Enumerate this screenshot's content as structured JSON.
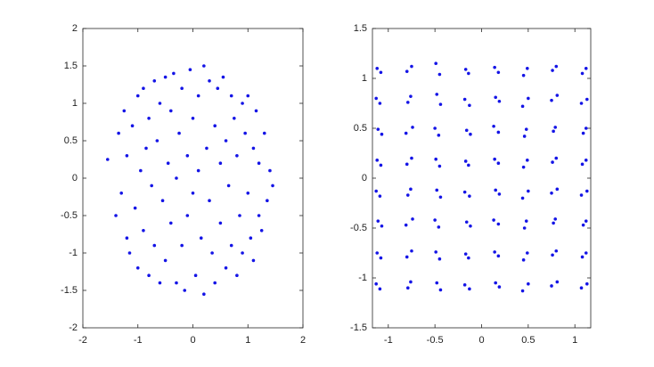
{
  "chart_data": [
    {
      "type": "scatter",
      "color": "#1414e6",
      "xlim": [
        -2,
        2
      ],
      "ylim": [
        -2,
        2
      ],
      "xticks": [
        -2,
        -1,
        0,
        1,
        2
      ],
      "yticks": [
        -2,
        -1.5,
        -1,
        -0.5,
        0,
        0.5,
        1,
        1.5,
        2
      ],
      "x": [
        -1.55,
        -1.4,
        -1.35,
        -1.3,
        -1.25,
        -1.2,
        -1.2,
        -1.15,
        -1.1,
        -1.05,
        -1.0,
        -1.0,
        -0.95,
        -0.9,
        -0.9,
        -0.85,
        -0.8,
        -0.8,
        -0.75,
        -0.7,
        -0.7,
        -0.65,
        -0.6,
        -0.6,
        -0.55,
        -0.5,
        -0.5,
        -0.45,
        -0.4,
        -0.4,
        -0.35,
        -0.3,
        -0.3,
        -0.25,
        -0.2,
        -0.2,
        -0.15,
        -0.1,
        -0.1,
        -0.05,
        0,
        0,
        0.05,
        0.1,
        0.1,
        0.15,
        0.2,
        0.2,
        0.25,
        0.3,
        0.3,
        0.35,
        0.4,
        0.4,
        0.45,
        0.5,
        0.5,
        0.55,
        0.6,
        0.6,
        0.65,
        0.7,
        0.7,
        0.75,
        0.8,
        0.8,
        0.85,
        0.9,
        0.9,
        0.95,
        1.0,
        1.0,
        1.05,
        1.1,
        1.1,
        1.15,
        1.2,
        1.2,
        1.25,
        1.3,
        1.35,
        1.4,
        1.45
      ],
      "values": [
        0.25,
        -0.5,
        0.6,
        -0.2,
        0.9,
        -0.8,
        0.3,
        -1.0,
        0.7,
        -0.4,
        1.1,
        -1.2,
        0.1,
        1.2,
        -0.7,
        0.4,
        -1.3,
        0.8,
        -0.1,
        1.3,
        -0.9,
        0.5,
        -1.4,
        1.0,
        -0.3,
        1.35,
        -1.1,
        0.2,
        -0.6,
        0.9,
        1.4,
        -1.4,
        0.0,
        0.6,
        -0.9,
        1.2,
        -1.5,
        0.3,
        -0.5,
        1.45,
        -0.2,
        0.8,
        -1.3,
        1.1,
        0.1,
        -0.8,
        1.5,
        -1.55,
        0.4,
        -0.3,
        1.3,
        -1.0,
        0.7,
        -1.4,
        1.2,
        -0.6,
        0.2,
        1.35,
        -1.2,
        0.5,
        -0.1,
        1.1,
        -0.9,
        0.8,
        -1.3,
        0.3,
        -0.5,
        1.0,
        -1.0,
        0.6,
        -0.2,
        1.1,
        -0.8,
        0.4,
        -1.1,
        0.9,
        -0.5,
        0.2,
        -0.7,
        0.6,
        -0.3,
        0.1,
        -0.1
      ]
    },
    {
      "type": "scatter",
      "color": "#1414e6",
      "xlim": [
        -1.17,
        1.17
      ],
      "ylim": [
        -1.5,
        1.5
      ],
      "xticks": [
        -1,
        -0.5,
        0,
        0.5,
        1
      ],
      "yticks": [
        -1.5,
        -1,
        -0.5,
        0,
        0.5,
        1,
        1.5
      ],
      "x": [
        -1.12,
        -1.08,
        -0.8,
        -0.75,
        -0.49,
        -0.45,
        -0.17,
        -0.14,
        0.14,
        0.18,
        0.45,
        0.49,
        0.76,
        0.8,
        1.08,
        1.12,
        -1.13,
        -1.09,
        -0.79,
        -0.76,
        -0.48,
        -0.44,
        -0.18,
        -0.13,
        0.15,
        0.19,
        0.44,
        0.5,
        0.75,
        0.81,
        1.07,
        1.13,
        -1.11,
        -1.07,
        -0.81,
        -0.74,
        -0.5,
        -0.46,
        -0.16,
        -0.12,
        0.13,
        0.18,
        0.46,
        0.48,
        0.77,
        0.79,
        1.09,
        1.12,
        -1.12,
        -1.08,
        -0.8,
        -0.75,
        -0.49,
        -0.45,
        -0.17,
        -0.14,
        0.14,
        0.18,
        0.45,
        0.49,
        0.76,
        0.8,
        1.08,
        1.12,
        -1.13,
        -1.09,
        -0.79,
        -0.76,
        -0.48,
        -0.44,
        -0.18,
        -0.13,
        0.15,
        0.19,
        0.44,
        0.5,
        0.75,
        0.81,
        1.07,
        1.13,
        -1.11,
        -1.07,
        -0.81,
        -0.74,
        -0.5,
        -0.46,
        -0.16,
        -0.12,
        0.13,
        0.18,
        0.46,
        0.48,
        0.77,
        0.79,
        1.09,
        1.12,
        -1.12,
        -1.08,
        -0.8,
        -0.75,
        -0.49,
        -0.45,
        -0.17,
        -0.14,
        0.14,
        0.18,
        0.45,
        0.49,
        0.76,
        0.8,
        1.08,
        1.12,
        -1.13,
        -1.09,
        -0.79,
        -0.76,
        -0.48,
        -0.44,
        -0.18,
        -0.13,
        0.15,
        0.19,
        0.44,
        0.5,
        0.75,
        0.81,
        1.07,
        1.13
      ],
      "values": [
        1.1,
        1.06,
        1.07,
        1.12,
        1.15,
        1.04,
        1.09,
        1.05,
        1.11,
        1.06,
        1.03,
        1.1,
        1.08,
        1.12,
        1.05,
        1.1,
        0.8,
        0.75,
        0.76,
        0.82,
        0.84,
        0.74,
        0.79,
        0.73,
        0.81,
        0.77,
        0.72,
        0.8,
        0.78,
        0.83,
        0.75,
        0.79,
        0.49,
        0.44,
        0.45,
        0.51,
        0.5,
        0.43,
        0.48,
        0.44,
        0.52,
        0.46,
        0.42,
        0.49,
        0.47,
        0.51,
        0.45,
        0.5,
        0.18,
        0.13,
        0.14,
        0.2,
        0.19,
        0.12,
        0.17,
        0.13,
        0.19,
        0.15,
        0.11,
        0.18,
        0.16,
        0.2,
        0.14,
        0.18,
        -0.13,
        -0.18,
        -0.17,
        -0.11,
        -0.12,
        -0.19,
        -0.14,
        -0.18,
        -0.12,
        -0.16,
        -0.2,
        -0.13,
        -0.15,
        -0.11,
        -0.17,
        -0.13,
        -0.43,
        -0.48,
        -0.47,
        -0.41,
        -0.42,
        -0.49,
        -0.44,
        -0.48,
        -0.42,
        -0.46,
        -0.5,
        -0.43,
        -0.45,
        -0.41,
        -0.47,
        -0.43,
        -0.75,
        -0.8,
        -0.79,
        -0.73,
        -0.74,
        -0.81,
        -0.76,
        -0.8,
        -0.74,
        -0.78,
        -0.82,
        -0.75,
        -0.77,
        -0.73,
        -0.79,
        -0.75,
        -1.06,
        -1.11,
        -1.1,
        -1.04,
        -1.05,
        -1.12,
        -1.07,
        -1.11,
        -1.05,
        -1.09,
        -1.13,
        -1.06,
        -1.08,
        -1.04,
        -1.1,
        -1.06
      ]
    }
  ]
}
